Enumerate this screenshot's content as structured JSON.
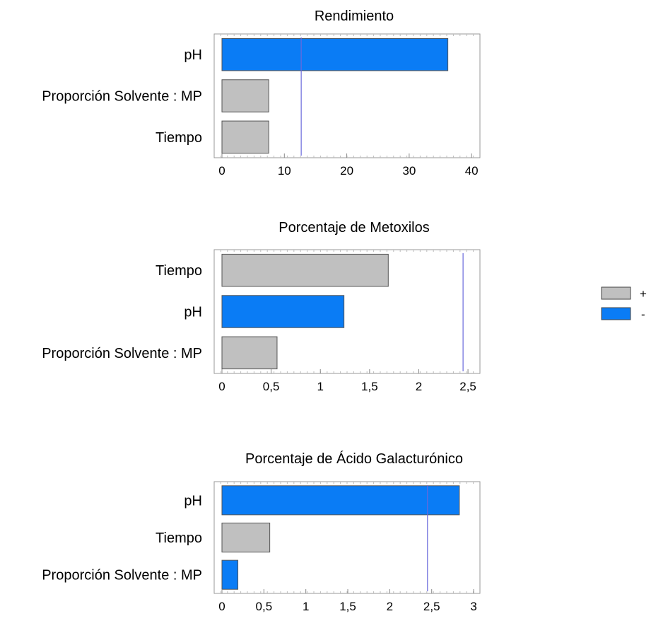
{
  "chart_data": [
    {
      "type": "bar",
      "orientation": "horizontal",
      "title": "Rendimiento",
      "categories": [
        "pH",
        "Proporción Solvente : MP",
        "Tiempo"
      ],
      "values": [
        36.2,
        7.5,
        7.5
      ],
      "signs": [
        "-",
        "+",
        "+"
      ],
      "reference_line": 12.7,
      "xlim": [
        0,
        41
      ],
      "xticks": [
        0,
        10,
        20,
        30,
        40
      ],
      "xtick_labels": [
        "0",
        "10",
        "20",
        "30",
        "40"
      ]
    },
    {
      "type": "bar",
      "orientation": "horizontal",
      "title": "Porcentaje de Metoxilos",
      "categories": [
        "Tiempo",
        "pH",
        "Proporción Solvente : MP"
      ],
      "values": [
        1.69,
        1.24,
        0.56
      ],
      "signs": [
        "+",
        "-",
        "+"
      ],
      "reference_line": 2.45,
      "xlim": [
        0,
        2.6
      ],
      "xticks": [
        0,
        0.5,
        1,
        1.5,
        2,
        2.5
      ],
      "xtick_labels": [
        "0",
        "0,5",
        "1",
        "1,5",
        "2",
        "2,5"
      ]
    },
    {
      "type": "bar",
      "orientation": "horizontal",
      "title": "Porcentaje de Ácido Galacturónico",
      "categories": [
        "pH",
        "Tiempo",
        "Proporción Solvente : MP"
      ],
      "values": [
        2.83,
        0.57,
        0.19
      ],
      "signs": [
        "-",
        "+",
        "-"
      ],
      "reference_line": 2.45,
      "xlim": [
        0,
        3.05
      ],
      "xticks": [
        0,
        0.5,
        1,
        1.5,
        2,
        2.5,
        3
      ],
      "xtick_labels": [
        "0",
        "0,5",
        "1",
        "1,5",
        "2",
        "2,5",
        "3"
      ]
    }
  ],
  "legend": {
    "position": "right",
    "items": [
      {
        "label": "+",
        "color": "#c0c0c0"
      },
      {
        "label": "-",
        "color": "#0a7cf5"
      }
    ]
  },
  "colors": {
    "positive": "#c0c0c0",
    "negative": "#0a7cf5",
    "reference_line": "#6a6adc",
    "frame": "#999999"
  }
}
